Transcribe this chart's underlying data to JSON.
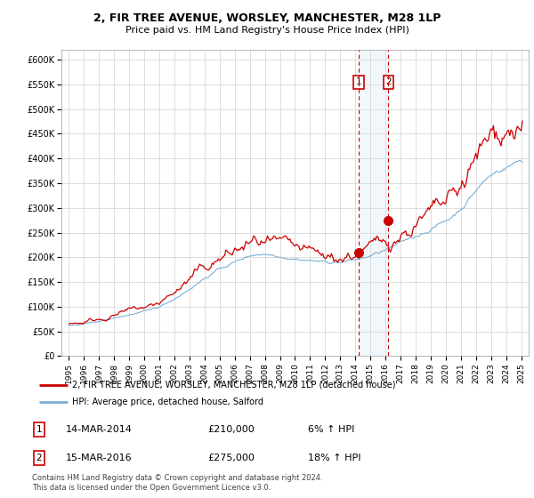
{
  "title": "2, FIR TREE AVENUE, WORSLEY, MANCHESTER, M28 1LP",
  "subtitle": "Price paid vs. HM Land Registry's House Price Index (HPI)",
  "legend_line1": "2, FIR TREE AVENUE, WORSLEY, MANCHESTER, M28 1LP (detached house)",
  "legend_line2": "HPI: Average price, detached house, Salford",
  "transaction1_label": "1",
  "transaction1_date": "14-MAR-2014",
  "transaction1_price": "£210,000",
  "transaction1_hpi": "6% ↑ HPI",
  "transaction2_label": "2",
  "transaction2_date": "15-MAR-2016",
  "transaction2_price": "£275,000",
  "transaction2_hpi": "18% ↑ HPI",
  "footer": "Contains HM Land Registry data © Crown copyright and database right 2024.\nThis data is licensed under the Open Government Licence v3.0.",
  "hpi_color": "#7bafd4",
  "price_color": "#cc0000",
  "marker_color": "#cc0000",
  "vline_color": "#cc0000",
  "shade_color": "#cce0f0",
  "transaction1_x": 2014.2,
  "transaction2_x": 2016.2,
  "ylim_min": 0,
  "ylim_max": 620000,
  "xlim_min": 1994.5,
  "xlim_max": 2025.5
}
